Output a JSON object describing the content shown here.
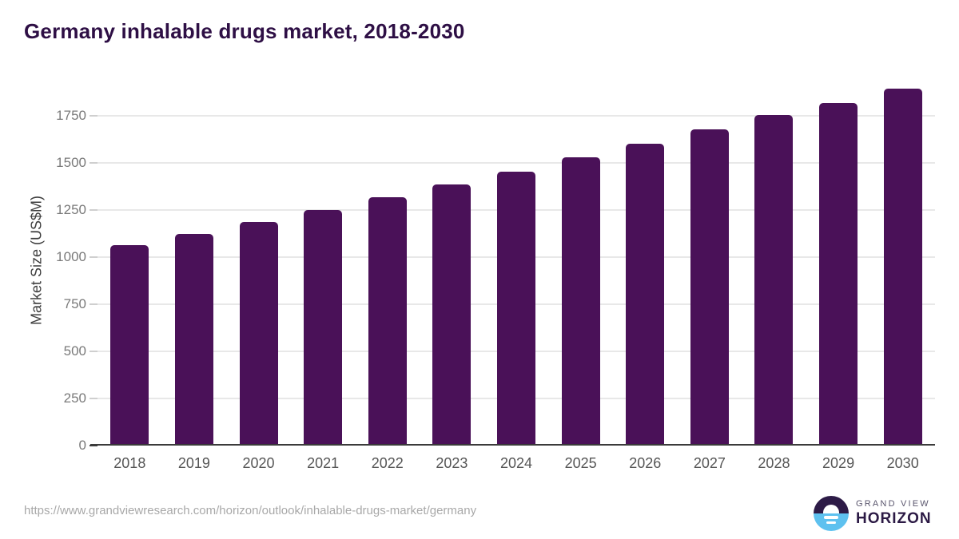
{
  "chart_data": {
    "type": "bar",
    "title": "Germany inhalable drugs market, 2018-2030",
    "xlabel": "",
    "ylabel": "Market Size (US$M)",
    "categories": [
      "2018",
      "2019",
      "2020",
      "2021",
      "2022",
      "2023",
      "2024",
      "2025",
      "2026",
      "2027",
      "2028",
      "2029",
      "2030"
    ],
    "values": [
      1063,
      1122,
      1185,
      1250,
      1318,
      1384,
      1452,
      1528,
      1602,
      1677,
      1753,
      1818,
      1893
    ],
    "yticks": [
      0,
      250,
      500,
      750,
      1000,
      1250,
      1500,
      1750
    ],
    "ylim": [
      0,
      1960
    ],
    "grid": "horizontal",
    "legend": "none",
    "bar_color": "#4a1158"
  },
  "colors": {
    "title": "#2e0f45",
    "bar": "#4a1158",
    "axis_line": "#3b3b3b",
    "gridline": "#e8e8e8",
    "y_tick_label": "#7a7a7a",
    "x_tick_label": "#565656",
    "source_url": "#a8a8a8",
    "logo_dark": "#2d1b47",
    "logo_blue": "#5ec1ef"
  },
  "footer": {
    "source_url": "https://www.grandviewresearch.com/horizon/outlook/inhalable-drugs-market/germany",
    "logo": {
      "line1": "GRAND VIEW",
      "line2": "HORIZON"
    }
  }
}
